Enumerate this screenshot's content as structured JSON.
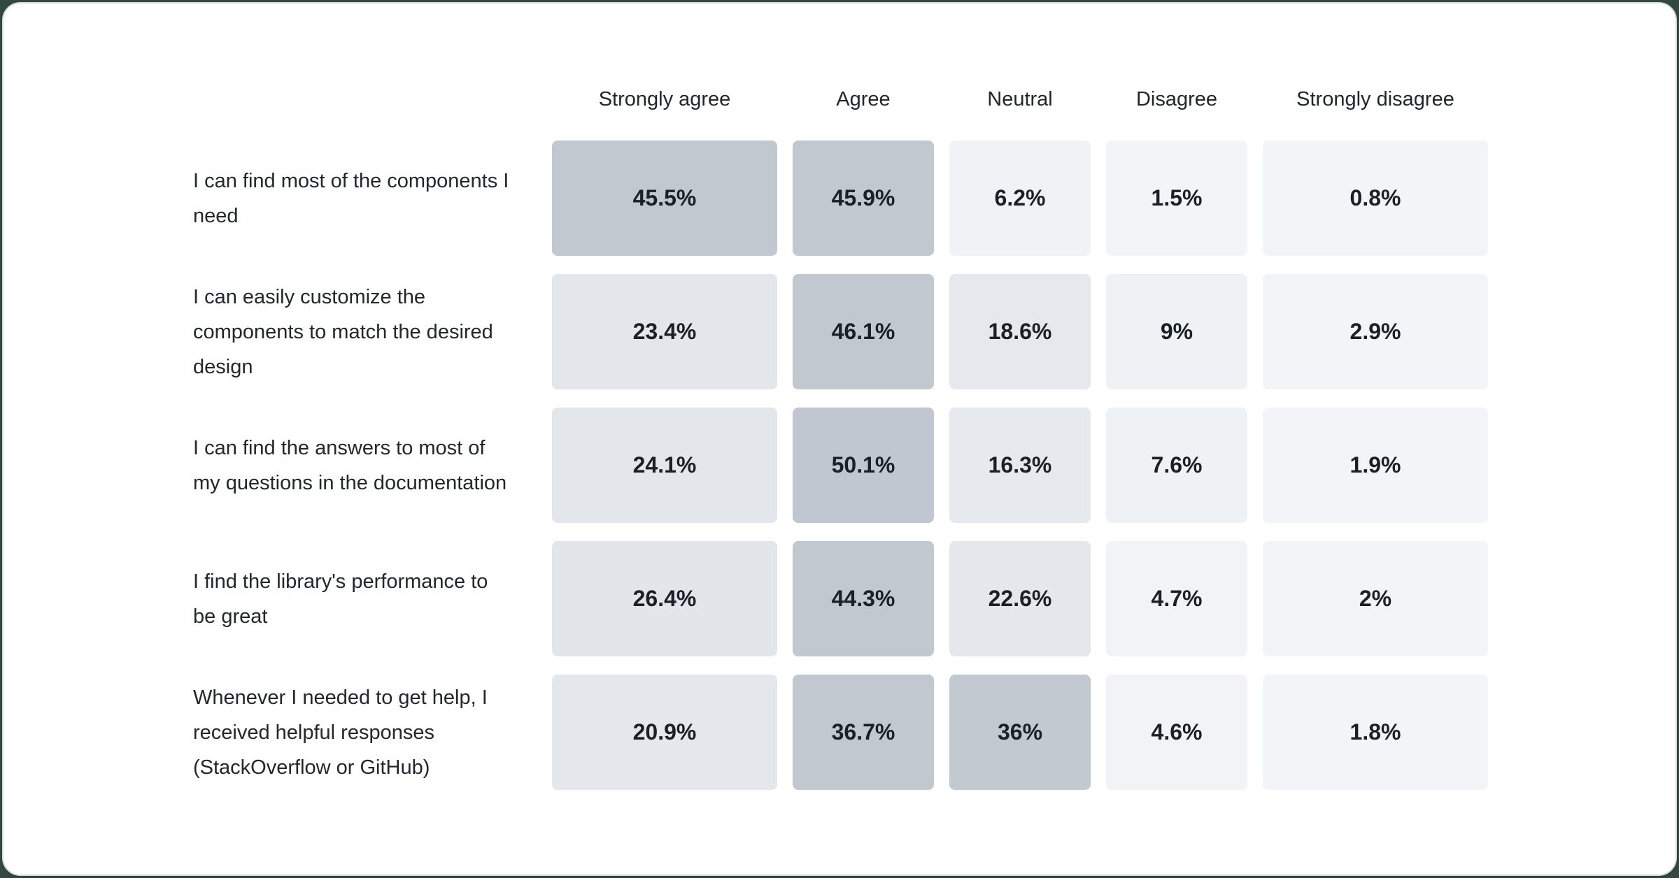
{
  "page": {
    "background_color": "#33493f",
    "card_background": "#ffffff",
    "card_border_color": "#d7dbdf",
    "text_color": "#21272a"
  },
  "chart_data": {
    "type": "heatmap",
    "title": "",
    "legend_position": "none",
    "grid": false,
    "color_scale": {
      "low": "#f2f5f8",
      "mid": "#e3e7eb",
      "high": "#c1c8d0"
    },
    "columns": [
      "Strongly agree",
      "Agree",
      "Neutral",
      "Disagree",
      "Strongly disagree"
    ],
    "rows": [
      {
        "label": "I can find most of the components I need",
        "values": [
          45.5,
          45.9,
          6.2,
          1.5,
          0.8
        ],
        "display": [
          "45.5%",
          "45.9%",
          "6.2%",
          "1.5%",
          "0.8%"
        ],
        "colors": [
          "#c1c8d0",
          "#c1c8d0",
          "#f0f3f6",
          "#f2f4f7",
          "#f2f5f8"
        ]
      },
      {
        "label": "I can easily customize the components to match the desired design",
        "values": [
          23.4,
          46.1,
          18.6,
          9,
          2.9
        ],
        "display": [
          "23.4%",
          "46.1%",
          "18.6%",
          "9%",
          "2.9%"
        ],
        "colors": [
          "#e3e7eb",
          "#c1c8d0",
          "#e5e8ec",
          "#eef2f5",
          "#f2f4f7"
        ]
      },
      {
        "label": "I can find the answers to most of my questions in the documentation",
        "values": [
          24.1,
          50.1,
          16.3,
          7.6,
          1.9
        ],
        "display": [
          "24.1%",
          "50.1%",
          "16.3%",
          "7.6%",
          "1.9%"
        ],
        "colors": [
          "#e3e7eb",
          "#c0c7d0",
          "#e6e9ed",
          "#eff2f5",
          "#f2f4f7"
        ]
      },
      {
        "label": "I find the library's performance to be great",
        "values": [
          26.4,
          44.3,
          22.6,
          4.7,
          2
        ],
        "display": [
          "26.4%",
          "44.3%",
          "22.6%",
          "4.7%",
          "2%"
        ],
        "colors": [
          "#e2e6ea",
          "#c1c8d0",
          "#e4e8ec",
          "#f1f3f6",
          "#f2f4f7"
        ]
      },
      {
        "label": "Whenever I needed to get help, I received helpful responses (StackOverflow or GitHub)",
        "values": [
          20.9,
          36.7,
          36,
          4.6,
          1.8
        ],
        "display": [
          "20.9%",
          "36.7%",
          "36%",
          "4.6%",
          "1.8%"
        ],
        "colors": [
          "#e4e8ec",
          "#c1c8d0",
          "#c2c9d1",
          "#f1f3f6",
          "#f2f5f8"
        ]
      }
    ]
  }
}
